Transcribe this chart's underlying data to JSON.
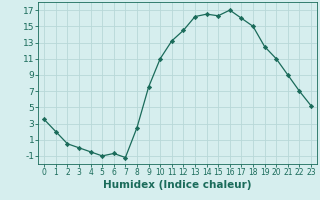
{
  "x": [
    0,
    1,
    2,
    3,
    4,
    5,
    6,
    7,
    8,
    9,
    10,
    11,
    12,
    13,
    14,
    15,
    16,
    17,
    18,
    19,
    20,
    21,
    22,
    23
  ],
  "y": [
    3.5,
    2.0,
    0.5,
    0.0,
    -0.5,
    -1.0,
    -0.7,
    -1.2,
    2.5,
    7.5,
    11.0,
    13.2,
    14.5,
    16.2,
    16.5,
    16.3,
    17.0,
    16.0,
    15.0,
    12.5,
    11.0,
    9.0,
    7.0,
    5.2
  ],
  "line_color": "#1a6b5a",
  "marker": "D",
  "marker_size": 2.2,
  "bg_color": "#d6eeee",
  "grid_color": "#b8d8d8",
  "xlabel": "Humidex (Indice chaleur)",
  "xlim": [
    -0.5,
    23.5
  ],
  "ylim": [
    -2,
    18
  ],
  "yticks": [
    -1,
    1,
    3,
    5,
    7,
    9,
    11,
    13,
    15,
    17
  ],
  "xticks": [
    0,
    1,
    2,
    3,
    4,
    5,
    6,
    7,
    8,
    9,
    10,
    11,
    12,
    13,
    14,
    15,
    16,
    17,
    18,
    19,
    20,
    21,
    22,
    23
  ],
  "tick_color": "#1a6b5a",
  "xlabel_fontsize": 7.5,
  "tick_fontsize_x": 5.5,
  "tick_fontsize_y": 6.5
}
